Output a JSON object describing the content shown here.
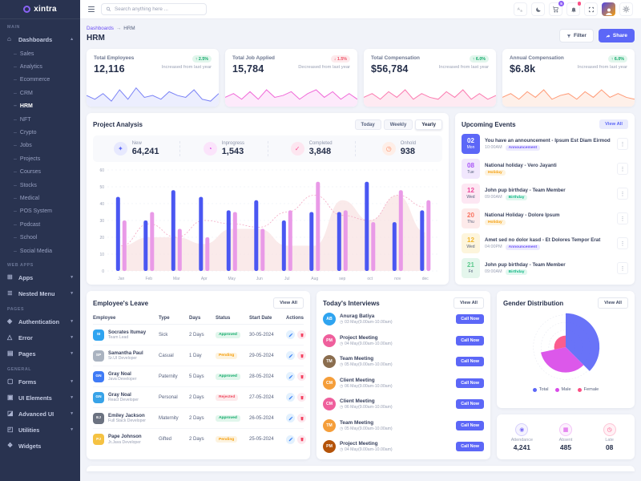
{
  "app": {
    "name": "xintra"
  },
  "colors": {
    "primary": "#5c67f7",
    "success": "#0fa968",
    "danger": "#ef4e63",
    "warning": "#f59e0b",
    "pink": "#fb4f84",
    "magenta": "#d94ae8",
    "orange": "#fb8e68",
    "sidebar_bg": "#293350"
  },
  "header": {
    "search_placeholder": "Search anything here ...",
    "cart_badge": "5",
    "icons": [
      "translate-icon",
      "moon-icon",
      "cart-icon",
      "bell-icon",
      "fullscreen-icon",
      "avatar",
      "gear-icon"
    ]
  },
  "sidebar": {
    "sections": [
      {
        "label": "MAIN",
        "items": [
          {
            "label": "Dashboards",
            "icon": "home",
            "expanded": true,
            "active_child": "HRM",
            "children": [
              "Sales",
              "Analytics",
              "Ecommerce",
              "CRM",
              "HRM",
              "NFT",
              "Crypto",
              "Jobs",
              "Projects",
              "Courses",
              "Stocks",
              "Medical",
              "POS System",
              "Podcast",
              "School",
              "Social Media"
            ]
          }
        ]
      },
      {
        "label": "WEB APPS",
        "items": [
          {
            "label": "Apps",
            "icon": "apps"
          },
          {
            "label": "Nested Menu",
            "icon": "nested"
          }
        ]
      },
      {
        "label": "PAGES",
        "items": [
          {
            "label": "Authentication",
            "icon": "lock"
          },
          {
            "label": "Error",
            "icon": "warning"
          },
          {
            "label": "Pages",
            "icon": "pages"
          }
        ]
      },
      {
        "label": "GENERAL",
        "items": [
          {
            "label": "Forms",
            "icon": "forms"
          },
          {
            "label": "UI Elements",
            "icon": "ui"
          },
          {
            "label": "Advanced UI",
            "icon": "advanced"
          },
          {
            "label": "Utilities",
            "icon": "utilities"
          },
          {
            "label": "Widgets",
            "icon": "widgets",
            "chevron": false
          }
        ]
      }
    ]
  },
  "breadcrumb": {
    "items": [
      "Dashboards",
      "HRM"
    ],
    "separator": "→",
    "title": "HRM"
  },
  "actions": {
    "filter_label": "Filter",
    "share_label": "Share"
  },
  "stat_cards": [
    {
      "title": "Total Employees",
      "value": "12,116",
      "badge": "2.5%",
      "trend": "up",
      "note": "Increased from last year",
      "color": "#7a82f6",
      "fill": "#eceefe"
    },
    {
      "title": "Total Job Applied",
      "value": "15,784",
      "badge": "1.5%",
      "trend": "down",
      "note": "Decreased from last year",
      "color": "#f06ad8",
      "fill": "#fdeafb"
    },
    {
      "title": "Total Compensation",
      "value": "$56,784",
      "badge": "6.0%",
      "trend": "up",
      "note": "Increased from last year",
      "color": "#fb7bb0",
      "fill": "#feeaf2"
    },
    {
      "title": "Annual Compensation",
      "value": "$6.8k",
      "badge": "6.0%",
      "trend": "up",
      "note": "Increased from last year",
      "color": "#ff9a76",
      "fill": "#fef0e9"
    }
  ],
  "project_analysis": {
    "title": "Project Analysis",
    "tabs": [
      "Today",
      "Weekly",
      "Yearly"
    ],
    "active_tab": "Yearly",
    "stats": [
      {
        "label": "New",
        "value": "64,241",
        "icon": "✦",
        "color": "#5c67f7",
        "bg": "#e7e9fe"
      },
      {
        "label": "Inprogress",
        "value": "1,543",
        "icon": "◔",
        "color": "#d94ae8",
        "bg": "#fbe4fb"
      },
      {
        "label": "Completed",
        "value": "3,848",
        "icon": "✓",
        "color": "#fb4f94",
        "bg": "#fde6f0"
      },
      {
        "label": "Onhold",
        "value": "938",
        "icon": "◷",
        "color": "#fb8e68",
        "bg": "#feeee7"
      }
    ]
  },
  "upcoming_events": {
    "title": "Upcoming Events",
    "view_all_label": "View All",
    "events": [
      {
        "day": "02",
        "weekday": "Mon",
        "title": "You have an announcement - Ipsum Est Diam Eirmod",
        "time": "10:00AM",
        "tag": "Announcement",
        "badge_bg": "#5c67f7",
        "badge_color": "#ffffff"
      },
      {
        "day": "08",
        "weekday": "Tue",
        "title": "National holiday - Vero Jayanti",
        "time": "",
        "tag": "Holiday",
        "badge_bg": "#f1e7fd",
        "badge_color": "#a855f7"
      },
      {
        "day": "12",
        "weekday": "Wed",
        "title": "John pup birthday - Team Member",
        "time": "09:00AM",
        "tag": "Birthday",
        "badge_bg": "#fde7f3",
        "badge_color": "#ec4899"
      },
      {
        "day": "20",
        "weekday": "Thu",
        "title": "National Holiday - Dolore Ipsum",
        "time": "",
        "tag": "Holiday",
        "badge_bg": "#fdeaea",
        "badge_color": "#f97360"
      },
      {
        "day": "12",
        "weekday": "Wed",
        "title": "Amet sed no dolor kasd - Et Dolores Tempor Erat",
        "time": "04:00PM",
        "tag": "Announcement",
        "badge_bg": "#fdf5dc",
        "badge_color": "#f0b429"
      },
      {
        "day": "21",
        "weekday": "Fri",
        "title": "John pup birthday - Team Member",
        "time": "09:00AM",
        "tag": "Birthday",
        "badge_bg": "#e4f6ec",
        "badge_color": "#5bc98c"
      }
    ],
    "tag_styles": {
      "Announcement": {
        "color": "#6e56f8",
        "bg": "#eceafe"
      },
      "Holiday": {
        "color": "#f59e0b",
        "bg": "#fdf3df"
      },
      "Birthday": {
        "color": "#12b886",
        "bg": "#e1f7ef"
      }
    }
  },
  "employees_leave": {
    "title": "Employee's Leave",
    "view_all_label": "View All",
    "columns": [
      "Employee",
      "Type",
      "Days",
      "Status",
      "Start Date",
      "Actions"
    ],
    "rows": [
      {
        "name": "Socrates Itumay",
        "role": "Team Lead",
        "type": "Sick",
        "days": "2 Days",
        "status": "Approved",
        "date": "30-05-2024",
        "avatar_bg": "#2fa4f0",
        "initials": "SI"
      },
      {
        "name": "Samantha Paul",
        "role": "Sr.UI Developer",
        "type": "Casual",
        "days": "1 Day",
        "status": "Pending",
        "date": "29-05-2024",
        "avatar_bg": "#aab3c0",
        "initials": "SP"
      },
      {
        "name": "Gray Noal",
        "role": "Java Developer",
        "type": "Paternity",
        "days": "5 Days",
        "status": "Approved",
        "date": "28-05-2024",
        "avatar_bg": "#3f7bf6",
        "initials": "GN"
      },
      {
        "name": "Gray Noal",
        "role": "React Developer",
        "type": "Personal",
        "days": "2 Days",
        "status": "Rejected",
        "date": "27-05-2024",
        "avatar_bg": "#38a3e8",
        "initials": "GN"
      },
      {
        "name": "Emiley Jackson",
        "role": "Full Stack Developer",
        "type": "Maternity",
        "days": "2 Days",
        "status": "Approved",
        "date": "26-05-2024",
        "avatar_bg": "#6b7280",
        "initials": "EJ"
      },
      {
        "name": "Pape Johnson",
        "role": "Jr.Java Developer",
        "type": "Gifted",
        "days": "2 Days",
        "status": "Pending",
        "date": "25-05-2024",
        "avatar_bg": "#f5c242",
        "initials": "PJ"
      }
    ],
    "status_styles": {
      "Approved": {
        "color": "#0fa968",
        "bg": "#e1f6ec"
      },
      "Pending": {
        "color": "#f59e0b",
        "bg": "#fdf3df"
      },
      "Rejected": {
        "color": "#ef4e63",
        "bg": "#fdeaec"
      }
    }
  },
  "todays_interviews": {
    "title": "Today's Interviews",
    "view_all_label": "View All",
    "call_label": "Call Now",
    "items": [
      {
        "name": "Anurag Batiya",
        "time": "03 May(9.00am-10.00am)",
        "avatar_bg": "#2fa4f0",
        "initials": "AB"
      },
      {
        "name": "Project Meeting",
        "time": "04 May(9.00am-10.00am)",
        "avatar_bg": "#ef5f9c",
        "initials": "PM"
      },
      {
        "name": "Team Meeting",
        "time": "05 May(9.00am-10.00am)",
        "avatar_bg": "#8a6d4e",
        "initials": "TM"
      },
      {
        "name": "Client Meeting",
        "time": "06 May(9.00am-10.00am)",
        "avatar_bg": "#f59e3a",
        "initials": "CM"
      },
      {
        "name": "Client Meeting",
        "time": "06 May(9.00am-10.00am)",
        "avatar_bg": "#ef5f9c",
        "initials": "CM"
      },
      {
        "name": "Team Meeting",
        "time": "05 May(9.00am-10.00am)",
        "avatar_bg": "#f59e3a",
        "initials": "TM"
      },
      {
        "name": "Project Meeting",
        "time": "04 May(9.00am-10.00am)",
        "avatar_bg": "#b45309",
        "initials": "PM"
      }
    ]
  },
  "gender_distribution": {
    "title": "Gender Distribution",
    "view_all_label": "View All"
  },
  "attendance_summary": {
    "items": [
      {
        "label": "Attendance",
        "value": "4,241",
        "icon": "◉",
        "color": "#7c6cf8"
      },
      {
        "label": "Absent",
        "value": "485",
        "icon": "▦",
        "color": "#d94ae8"
      },
      {
        "label": "Late",
        "value": "08",
        "icon": "◷",
        "color": "#fb4f84"
      }
    ]
  },
  "chart_data": [
    {
      "id": "project_analysis",
      "type": "bar",
      "title": "Project Analysis",
      "categories": [
        "Jan",
        "Feb",
        "Mar",
        "Apr",
        "May",
        "Jun",
        "Jul",
        "Aug",
        "sep",
        "oct",
        "nov",
        "dec"
      ],
      "series": [
        {
          "name": "New",
          "kind": "bar",
          "color": "#4a57f2",
          "values": [
            44,
            30,
            48,
            44,
            36,
            42,
            30,
            35,
            35,
            53,
            29,
            36
          ]
        },
        {
          "name": "Inprogress",
          "kind": "bar",
          "color": "#e99ae7",
          "values": [
            30,
            35,
            25,
            20,
            35,
            25,
            36,
            53,
            36,
            29,
            48,
            42
          ]
        },
        {
          "name": "Completed",
          "kind": "area",
          "color": "#f8e3e3",
          "values": [
            15,
            20,
            20,
            16,
            25,
            25,
            15,
            15,
            42,
            30,
            45,
            23
          ]
        },
        {
          "name": "Onhold",
          "kind": "dotted-line",
          "color": "#f3a8c3",
          "values": [
            15,
            28,
            20,
            30,
            28,
            26,
            35,
            45,
            33,
            30,
            45,
            38
          ]
        }
      ],
      "ylim": [
        0,
        60
      ],
      "yticks": [
        0,
        10,
        20,
        30,
        40,
        50,
        60
      ],
      "grid": true,
      "legend": "none"
    },
    {
      "id": "gender",
      "type": "polar-area",
      "title": "Gender Distribution",
      "segments": [
        {
          "label": "Total",
          "value": 44,
          "start": 0,
          "end": 135,
          "color": "#5c67f7"
        },
        {
          "label": "Male",
          "value": 33,
          "start": 135,
          "end": 258,
          "color": "#d94ae8"
        },
        {
          "label": "Female",
          "value": 15,
          "start": 258,
          "end": 360,
          "color": "#fb4f84"
        }
      ],
      "legend_position": "bottom"
    },
    {
      "id": "sparklines",
      "type": "line",
      "series": [
        {
          "name": "Total Employees",
          "values": [
            5,
            3,
            6,
            2,
            8,
            3,
            9,
            4,
            5,
            3,
            7,
            5,
            4,
            8,
            3,
            2,
            6
          ]
        },
        {
          "name": "Total Job Applied",
          "values": [
            4,
            6,
            3,
            7,
            3,
            8,
            4,
            5,
            7,
            3,
            6,
            8,
            4,
            7,
            3,
            6,
            3
          ]
        },
        {
          "name": "Total Compensation",
          "values": [
            4,
            6,
            3,
            7,
            4,
            8,
            3,
            6,
            4,
            3,
            7,
            4,
            8,
            3,
            6,
            3,
            5
          ]
        },
        {
          "name": "Annual Compensation",
          "values": [
            4,
            6,
            3,
            7,
            4,
            8,
            3,
            5,
            6,
            3,
            7,
            4,
            8,
            4,
            6,
            4,
            3
          ]
        }
      ]
    }
  ]
}
